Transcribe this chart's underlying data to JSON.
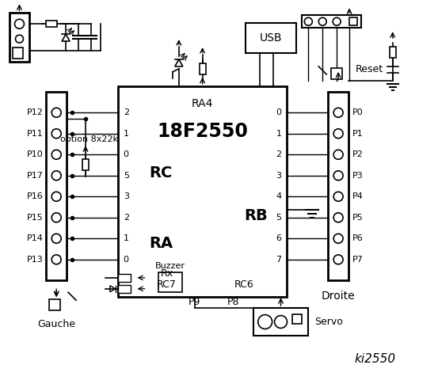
{
  "left_connector_pins": [
    "P12",
    "P11",
    "P10",
    "P17",
    "P16",
    "P15",
    "P14",
    "P13"
  ],
  "right_connector_pins": [
    "P0",
    "P1",
    "P2",
    "P3",
    "P4",
    "P5",
    "P6",
    "P7"
  ],
  "rc_pins": [
    "2",
    "1",
    "0",
    "5",
    "3",
    "2",
    "1",
    "0"
  ],
  "rb_pins": [
    "0",
    "1",
    "2",
    "3",
    "4",
    "5",
    "6",
    "7"
  ],
  "option_text": "option 8x22k",
  "rx_text": "Rx",
  "rc7_text": "RC7",
  "rc6_text": "RC6",
  "ic_label": "18F2550",
  "ic_sublabel": "RA4",
  "rc_label": "RC",
  "ra_label": "RA",
  "rb_label": "RB",
  "gauche_label": "Gauche",
  "droite_label": "Droite",
  "buzzer_label": "Buzzer",
  "servo_label": "Servo",
  "p9_label": "P9",
  "p8_label": "P8",
  "reset_label": "Reset",
  "title": "ki2550",
  "usb_label": "USB"
}
